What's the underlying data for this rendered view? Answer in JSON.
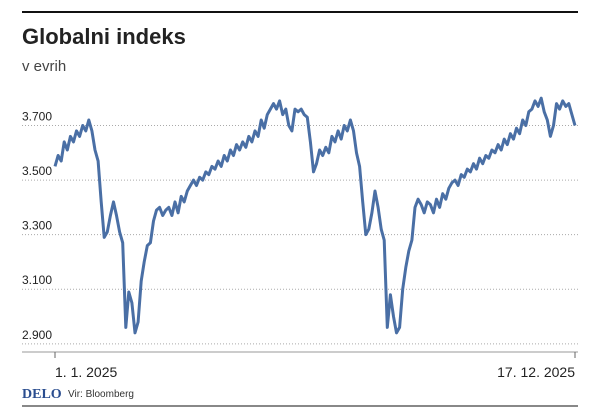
{
  "chart_data": {
    "type": "line",
    "title": "Globalni indeks",
    "subtitle": "v evrih",
    "brand": "DELO",
    "source": "Vir: Bloomberg",
    "categories": [
      "1. 1. 2025",
      null,
      null,
      null,
      null,
      null,
      null,
      null,
      null,
      null,
      null,
      null,
      null,
      null,
      null,
      null,
      null,
      null,
      null,
      null,
      null,
      null,
      null,
      null,
      null,
      null,
      null,
      null,
      null,
      null,
      null,
      null,
      null,
      null,
      null,
      null,
      null,
      null,
      null,
      null,
      null,
      null,
      null,
      null,
      null,
      null,
      null,
      null,
      null,
      null,
      null,
      null,
      null,
      null,
      null,
      null,
      null,
      null,
      null,
      null,
      null,
      null,
      null,
      null,
      null,
      null,
      null,
      null,
      null,
      null,
      null,
      null,
      null,
      null,
      null,
      null,
      null,
      null,
      null,
      null,
      null,
      null,
      null,
      null,
      null,
      null,
      null,
      null,
      null,
      null,
      null,
      null,
      null,
      null,
      null,
      null,
      null,
      null,
      null,
      null,
      null,
      null,
      null,
      null,
      null,
      null,
      null,
      null,
      null,
      null,
      null,
      null,
      null,
      null,
      null,
      null,
      null,
      null,
      null,
      null,
      null,
      null,
      null,
      null,
      null,
      null,
      null,
      null,
      null,
      null,
      null,
      null,
      null,
      null,
      null,
      null,
      null,
      null,
      null,
      null,
      null,
      null,
      null,
      null,
      null,
      null,
      null,
      null,
      null,
      null,
      null,
      null,
      null,
      null,
      null,
      null,
      null,
      null,
      null,
      null,
      null,
      null,
      null,
      null,
      null,
      null,
      null,
      null,
      null,
      "17. 12. 2025"
    ],
    "series": [
      {
        "name": "Globalni indeks",
        "color": "#4a6fa5",
        "values": [
          3550,
          3590,
          3570,
          3640,
          3610,
          3660,
          3640,
          3680,
          3660,
          3700,
          3680,
          3720,
          3680,
          3610,
          3570,
          3420,
          3290,
          3310,
          3370,
          3420,
          3370,
          3310,
          3270,
          2960,
          3090,
          3050,
          2940,
          2980,
          3130,
          3200,
          3260,
          3270,
          3350,
          3390,
          3400,
          3370,
          3390,
          3400,
          3370,
          3420,
          3380,
          3440,
          3420,
          3460,
          3480,
          3500,
          3480,
          3510,
          3500,
          3530,
          3520,
          3550,
          3540,
          3570,
          3550,
          3590,
          3570,
          3610,
          3590,
          3630,
          3610,
          3640,
          3620,
          3660,
          3640,
          3680,
          3660,
          3720,
          3690,
          3740,
          3760,
          3780,
          3760,
          3790,
          3740,
          3760,
          3700,
          3680,
          3760,
          3750,
          3760,
          3740,
          3730,
          3640,
          3530,
          3560,
          3610,
          3590,
          3620,
          3600,
          3660,
          3640,
          3680,
          3650,
          3700,
          3680,
          3720,
          3680,
          3600,
          3550,
          3420,
          3300,
          3320,
          3380,
          3460,
          3400,
          3320,
          3280,
          2960,
          3080,
          3000,
          2940,
          2960,
          3100,
          3180,
          3240,
          3280,
          3400,
          3430,
          3410,
          3380,
          3420,
          3410,
          3380,
          3430,
          3400,
          3450,
          3430,
          3470,
          3490,
          3500,
          3480,
          3520,
          3510,
          3540,
          3530,
          3560,
          3540,
          3580,
          3560,
          3590,
          3580,
          3610,
          3600,
          3630,
          3610,
          3650,
          3630,
          3670,
          3650,
          3690,
          3670,
          3720,
          3700,
          3750,
          3760,
          3790,
          3770,
          3800,
          3750,
          3720,
          3660,
          3700,
          3780,
          3760,
          3790,
          3770,
          3780,
          3740,
          3700
        ]
      }
    ],
    "ylim": [
      2870,
      3830
    ],
    "yticks": [
      {
        "value": 2900,
        "label": "2.900"
      },
      {
        "value": 3100,
        "label": "3.100"
      },
      {
        "value": 3300,
        "label": "3.300"
      },
      {
        "value": 3500,
        "label": "3.500"
      },
      {
        "value": 3700,
        "label": "3.700"
      }
    ],
    "grid": true
  }
}
